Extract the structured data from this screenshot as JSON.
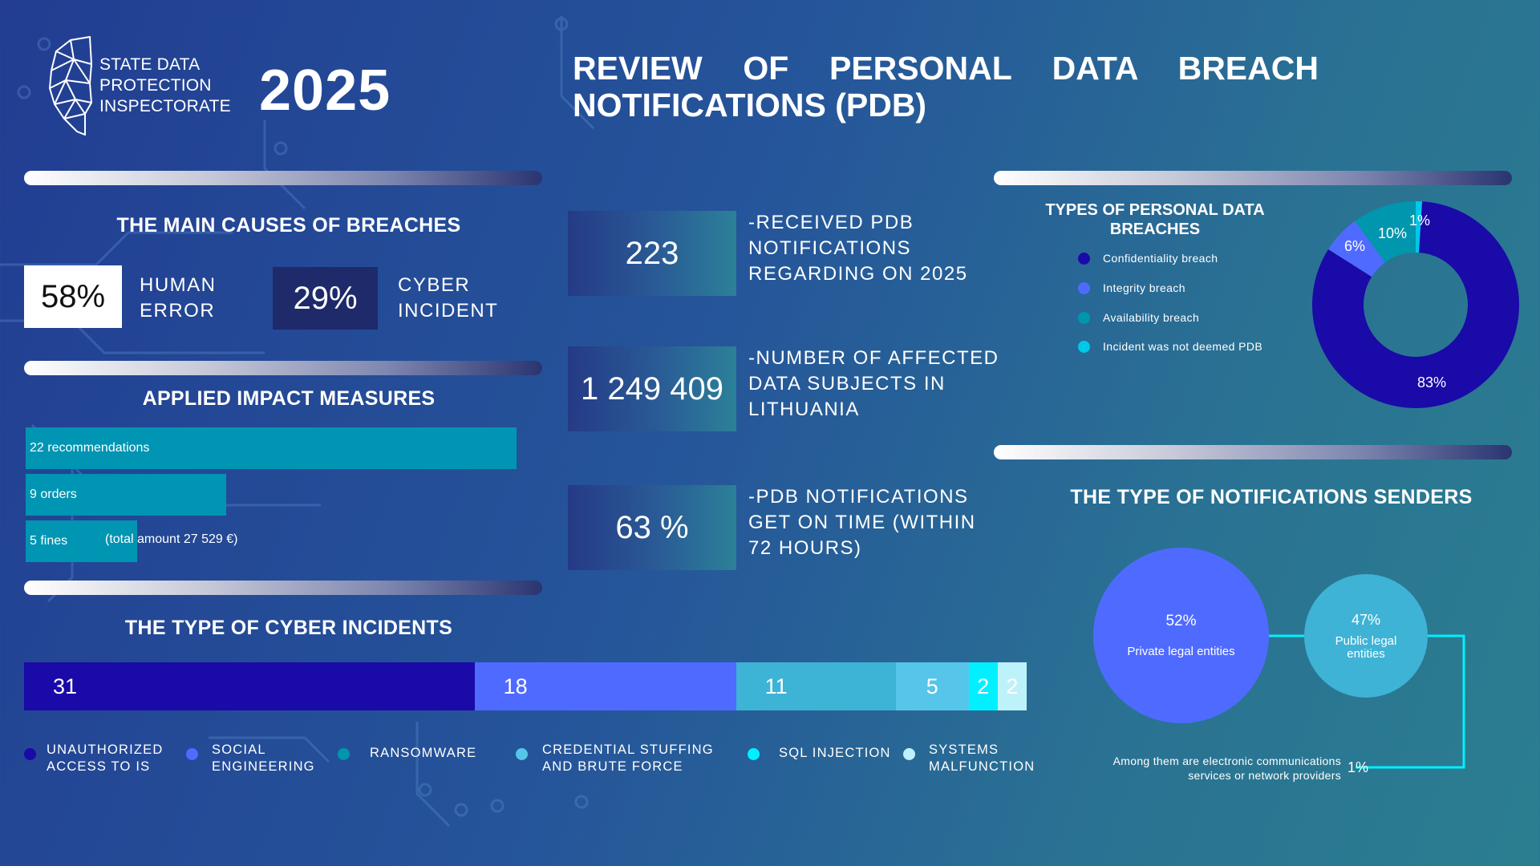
{
  "header": {
    "org_lines": [
      "STATE DATA",
      "PROTECTION",
      "INSPECTORATE"
    ],
    "year": "2025",
    "title_line1": "REVIEW OF PERSONAL DATA BREACH",
    "title_line2": "NOTIFICATIONS (PDB)"
  },
  "causes": {
    "title": "THE MAIN CAUSES OF BREACHES",
    "items": [
      {
        "value": "58%",
        "label_lines": [
          "HUMAN",
          "ERROR"
        ]
      },
      {
        "value": "29%",
        "label_lines": [
          "CYBER",
          "INCIDENT"
        ]
      }
    ]
  },
  "measures": {
    "title": "APPLIED IMPACT MEASURES",
    "items": [
      {
        "label": "22 recommendations",
        "count": 22
      },
      {
        "label": "9 orders",
        "count": 9
      },
      {
        "label": "5 fines",
        "count": 5,
        "note": "(total amount 27 529 €)"
      }
    ]
  },
  "stats": [
    {
      "value": "223",
      "text_lines": [
        "-RECEIVED PDB",
        "NOTIFICATIONS",
        "REGARDING ON 2025"
      ]
    },
    {
      "value": "1 249 409",
      "text_lines": [
        "-NUMBER OF AFFECTED",
        "DATA SUBJECTS IN",
        "LITHUANIA"
      ]
    },
    {
      "value": "63 %",
      "text_lines": [
        "-PDB NOTIFICATIONS",
        "GET ON TIME (WITHIN",
        "72 HOURS)"
      ]
    }
  ],
  "colors": {
    "navy": "#1a0aa8",
    "blue": "#4f6bff",
    "teal": "#0096ad",
    "sky": "#3db3d6",
    "light_sky": "#56c5ea",
    "cyan": "#00f0ff",
    "pale": "#bdf2fb",
    "sender_private": "#4f6bff",
    "sender_public": "#3fb3d6"
  },
  "chart_data": [
    {
      "type": "bar",
      "orientation": "horizontal-stacked",
      "title": "THE TYPE OF CYBER INCIDENTS",
      "categories": [
        "UNAUTHORIZED ACCESS TO IS",
        "SOCIAL ENGINEERING",
        "RANSOMWARE",
        "CREDENTIAL STUFFING AND BRUTE FORCE",
        "SQL INJECTION",
        "SYSTEMS MALFUNCTION"
      ],
      "legend_lines": [
        [
          "UNAUTHORIZED",
          "ACCESS TO IS"
        ],
        [
          "SOCIAL",
          "ENGINEERING"
        ],
        [
          "RANSOMWARE"
        ],
        [
          "CREDENTIAL STUFFING",
          "AND BRUTE FORCE"
        ],
        [
          "SQL INJECTION"
        ],
        [
          "SYSTEMS",
          "MALFUNCTION"
        ]
      ],
      "values": [
        31,
        18,
        11,
        5,
        2,
        2
      ],
      "labels": [
        "31",
        "18",
        "11",
        "5",
        "2",
        "2"
      ],
      "colors": [
        "#1a0aa8",
        "#4f6bff",
        "#3db3d6",
        "#56c5ea",
        "#00f0ff",
        "#bdf2fb"
      ],
      "legend_colors": [
        "#1a0aa8",
        "#4f6bff",
        "#0096ad",
        "#56c5ea",
        "#00f0ff",
        "#bdf2fb"
      ]
    },
    {
      "type": "pie",
      "title": "TYPES OF PERSONAL DATA BREACHES",
      "categories": [
        "Confidentiality breach",
        "Integrity breach",
        "Availability breach",
        "Incident was not deemed PDB"
      ],
      "values": [
        83,
        6,
        10,
        1
      ],
      "labels": [
        "83%",
        "6%",
        "10%",
        "1%"
      ],
      "colors": [
        "#1a0aa8",
        "#4f6bff",
        "#0096ad",
        "#00c8ea"
      ],
      "donut": true
    },
    {
      "type": "bubble",
      "title": "THE TYPE OF NOTIFICATIONS SENDERS",
      "categories": [
        "Private legal entities",
        "Public legal entities"
      ],
      "values": [
        52,
        47
      ],
      "labels": [
        "52%",
        "47%"
      ],
      "sub_label_lines": [
        [
          "Private legal entities"
        ],
        [
          "Public legal",
          "entities"
        ]
      ],
      "footnote_lines": [
        "Among them are electronic communications",
        "services or network providers"
      ],
      "footnote_value": "1%"
    }
  ]
}
